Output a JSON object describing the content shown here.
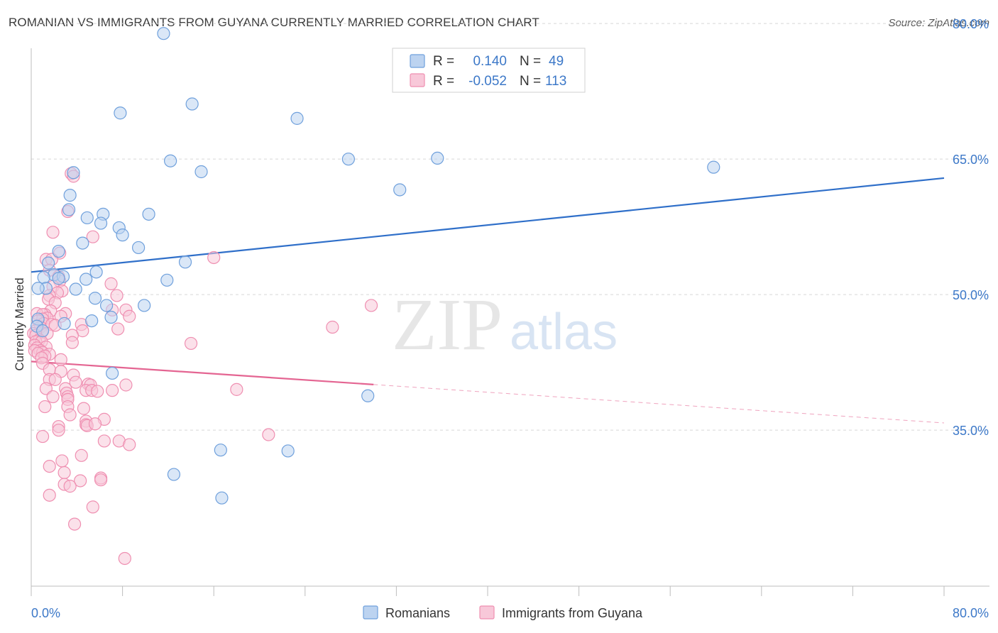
{
  "title": "ROMANIAN VS IMMIGRANTS FROM GUYANA CURRENTLY MARRIED CORRELATION CHART",
  "source": "Source: ZipAtlas.com",
  "watermark": {
    "zip": "ZIP",
    "atlas": "atlas"
  },
  "colors": {
    "blue": "#6fa0dc",
    "blue_fill": "#bcd3f0",
    "blue_line": "#2f6fc9",
    "pink": "#ef8fb1",
    "pink_fill": "#f8c8d9",
    "pink_line": "#e46592",
    "grid": "#d8d8d8",
    "tick_text": "#3c78c8"
  },
  "legend": {
    "rows": [
      {
        "r_label": "R =",
        "r_value": "0.140",
        "n_label": "N =",
        "n_value": "49"
      },
      {
        "r_label": "R =",
        "r_value": "-0.052",
        "n_label": "N =",
        "n_value": "113"
      }
    ]
  },
  "bottom_legend": [
    "Romanians",
    "Immigrants from Guyana"
  ],
  "chart_data": {
    "type": "scatter",
    "title": "ROMANIAN VS IMMIGRANTS FROM GUYANA CURRENTLY MARRIED CORRELATION CHART",
    "xlabel": "",
    "ylabel": "Currently Married",
    "xlim": [
      0,
      80
    ],
    "ylim": [
      20,
      82
    ],
    "x_tick_labels": [
      "0.0%",
      "80.0%"
    ],
    "y_ticks": [
      35,
      50,
      65,
      80
    ],
    "y_tick_labels": [
      "35.0%",
      "50.0%",
      "65.0%",
      "80.0%"
    ],
    "grid": true,
    "series": [
      {
        "name": "Romanians",
        "r": 0.14,
        "n": 49,
        "trend": {
          "x": [
            0,
            80
          ],
          "y": [
            52.5,
            62.9
          ],
          "solid_until": 80
        },
        "points": [
          [
            11.6,
            78.9
          ],
          [
            14.1,
            71.1
          ],
          [
            7.8,
            70.1
          ],
          [
            23.3,
            69.5
          ],
          [
            12.2,
            64.8
          ],
          [
            27.8,
            65.0
          ],
          [
            35.6,
            65.1
          ],
          [
            59.8,
            64.1
          ],
          [
            14.9,
            63.6
          ],
          [
            3.7,
            63.5
          ],
          [
            32.3,
            61.6
          ],
          [
            3.4,
            61.0
          ],
          [
            3.3,
            59.4
          ],
          [
            10.3,
            58.9
          ],
          [
            6.3,
            58.9
          ],
          [
            4.9,
            58.5
          ],
          [
            6.1,
            57.9
          ],
          [
            7.7,
            57.4
          ],
          [
            8.0,
            56.6
          ],
          [
            4.5,
            55.7
          ],
          [
            9.4,
            55.2
          ],
          [
            2.4,
            54.8
          ],
          [
            13.5,
            53.6
          ],
          [
            1.5,
            53.5
          ],
          [
            5.7,
            52.5
          ],
          [
            2.0,
            52.2
          ],
          [
            2.8,
            52.0
          ],
          [
            1.1,
            51.9
          ],
          [
            4.8,
            51.7
          ],
          [
            11.9,
            51.6
          ],
          [
            2.4,
            51.8
          ],
          [
            1.3,
            50.7
          ],
          [
            0.6,
            50.7
          ],
          [
            3.9,
            50.6
          ],
          [
            5.6,
            49.6
          ],
          [
            6.6,
            48.8
          ],
          [
            9.9,
            48.8
          ],
          [
            7.0,
            47.5
          ],
          [
            0.6,
            47.3
          ],
          [
            5.3,
            47.1
          ],
          [
            2.9,
            46.8
          ],
          [
            7.1,
            41.3
          ],
          [
            29.5,
            38.8
          ],
          [
            16.6,
            32.8
          ],
          [
            22.5,
            32.7
          ],
          [
            12.5,
            30.1
          ],
          [
            16.7,
            27.5
          ],
          [
            0.5,
            46.5
          ],
          [
            1.0,
            46.0
          ]
        ]
      },
      {
        "name": "Immigrants from Guyana",
        "r": -0.052,
        "n": 113,
        "trend": {
          "x": [
            0,
            80
          ],
          "y": [
            42.6,
            35.8
          ],
          "solid_until": 30
        },
        "points": [
          [
            3.5,
            63.4
          ],
          [
            3.7,
            63.1
          ],
          [
            3.2,
            59.2
          ],
          [
            1.9,
            56.9
          ],
          [
            5.4,
            56.4
          ],
          [
            16.0,
            54.1
          ],
          [
            1.3,
            53.9
          ],
          [
            2.5,
            54.6
          ],
          [
            1.8,
            53.9
          ],
          [
            1.6,
            52.7
          ],
          [
            2.4,
            52.0
          ],
          [
            7.0,
            51.2
          ],
          [
            2.5,
            51.5
          ],
          [
            1.9,
            50.9
          ],
          [
            2.7,
            50.4
          ],
          [
            2.3,
            50.2
          ],
          [
            1.6,
            49.9
          ],
          [
            7.5,
            49.9
          ],
          [
            1.5,
            49.5
          ],
          [
            2.1,
            49.1
          ],
          [
            29.8,
            48.8
          ],
          [
            7.1,
            48.3
          ],
          [
            8.3,
            48.3
          ],
          [
            1.7,
            48.2
          ],
          [
            1.2,
            47.8
          ],
          [
            0.5,
            47.9
          ],
          [
            1.0,
            47.8
          ],
          [
            3.0,
            47.9
          ],
          [
            8.6,
            47.6
          ],
          [
            2.6,
            47.6
          ],
          [
            1.4,
            47.4
          ],
          [
            1.0,
            47.3
          ],
          [
            0.6,
            47.1
          ],
          [
            1.1,
            46.8
          ],
          [
            4.4,
            46.7
          ],
          [
            1.8,
            46.7
          ],
          [
            2.1,
            46.6
          ],
          [
            0.8,
            46.4
          ],
          [
            7.6,
            46.2
          ],
          [
            26.4,
            46.4
          ],
          [
            4.5,
            46.0
          ],
          [
            0.4,
            46.0
          ],
          [
            0.9,
            45.8
          ],
          [
            1.4,
            45.7
          ],
          [
            0.2,
            45.7
          ],
          [
            0.4,
            45.5
          ],
          [
            3.6,
            45.5
          ],
          [
            0.7,
            45.0
          ],
          [
            0.4,
            44.8
          ],
          [
            0.9,
            44.8
          ],
          [
            14.0,
            44.6
          ],
          [
            3.6,
            44.7
          ],
          [
            0.3,
            44.4
          ],
          [
            1.3,
            44.2
          ],
          [
            0.5,
            44.1
          ],
          [
            0.8,
            43.8
          ],
          [
            0.3,
            43.8
          ],
          [
            1.0,
            43.6
          ],
          [
            0.6,
            43.5
          ],
          [
            1.6,
            43.4
          ],
          [
            1.2,
            43.2
          ],
          [
            0.9,
            43.0
          ],
          [
            2.6,
            42.8
          ],
          [
            1.0,
            42.4
          ],
          [
            1.6,
            41.7
          ],
          [
            2.6,
            41.5
          ],
          [
            3.7,
            41.1
          ],
          [
            1.6,
            40.6
          ],
          [
            2.1,
            40.6
          ],
          [
            5.0,
            40.1
          ],
          [
            5.2,
            40.0
          ],
          [
            3.9,
            40.3
          ],
          [
            8.3,
            40.0
          ],
          [
            1.3,
            39.6
          ],
          [
            3.0,
            39.6
          ],
          [
            4.8,
            39.4
          ],
          [
            5.3,
            39.4
          ],
          [
            5.8,
            39.3
          ],
          [
            7.1,
            39.4
          ],
          [
            18.0,
            39.5
          ],
          [
            3.1,
            39.1
          ],
          [
            3.2,
            38.7
          ],
          [
            1.9,
            38.7
          ],
          [
            3.2,
            38.4
          ],
          [
            1.2,
            37.6
          ],
          [
            3.2,
            37.6
          ],
          [
            4.6,
            37.4
          ],
          [
            3.4,
            36.7
          ],
          [
            6.4,
            36.2
          ],
          [
            4.8,
            36.0
          ],
          [
            4.8,
            35.6
          ],
          [
            4.9,
            35.5
          ],
          [
            5.6,
            35.7
          ],
          [
            2.4,
            35.4
          ],
          [
            2.4,
            35.0
          ],
          [
            1.0,
            34.3
          ],
          [
            20.8,
            34.5
          ],
          [
            6.4,
            33.8
          ],
          [
            7.7,
            33.8
          ],
          [
            8.6,
            33.4
          ],
          [
            4.4,
            32.2
          ],
          [
            2.7,
            31.6
          ],
          [
            1.6,
            31.0
          ],
          [
            2.9,
            30.3
          ],
          [
            6.1,
            29.7
          ],
          [
            6.1,
            29.5
          ],
          [
            4.3,
            29.4
          ],
          [
            2.9,
            29.0
          ],
          [
            3.4,
            28.8
          ],
          [
            1.6,
            27.8
          ],
          [
            5.4,
            26.5
          ],
          [
            3.8,
            24.6
          ],
          [
            8.2,
            20.8
          ]
        ]
      }
    ]
  }
}
